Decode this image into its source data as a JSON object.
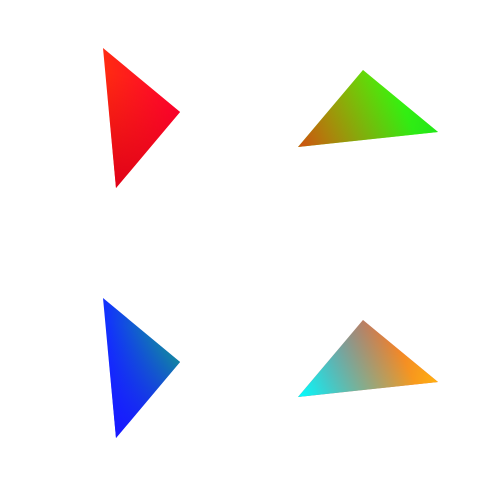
{
  "canvas": {
    "background": "#ffffff"
  },
  "triangles": [
    {
      "name": "triangle-red",
      "vertex_colors": [
        "#ff2a12",
        "#ff0030",
        "#e00018"
      ]
    },
    {
      "name": "triangle-green",
      "vertex_colors": [
        "#55ff00",
        "#22e61a",
        "#d05010"
      ]
    },
    {
      "name": "triangle-blue",
      "vertex_colors": [
        "#1230ff",
        "#10a08a",
        "#1818ff"
      ]
    },
    {
      "name": "triangle-multicolor",
      "vertex_colors": [
        "#e04a4a",
        "#ffb010",
        "#00ffff"
      ]
    }
  ]
}
